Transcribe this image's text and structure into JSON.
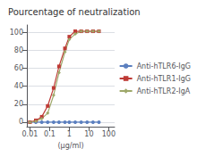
{
  "chart_data": {
    "type": "line",
    "title": "Pourcentage of neutralization",
    "x_label": "(μg/ml)",
    "log": "x",
    "xlim": [
      0.007,
      200
    ],
    "xticks": [
      0.01,
      0.1,
      1,
      10,
      100
    ],
    "ylim": [
      -5,
      108
    ],
    "yticks": [
      0,
      20,
      40,
      60,
      80,
      100
    ],
    "grid": "y",
    "legend": "right",
    "x": [
      0.01,
      0.02,
      0.04,
      0.08,
      0.16,
      0.3,
      0.6,
      1.0,
      2.0,
      4.0,
      8.0,
      16.0,
      32.0
    ],
    "series": [
      {
        "name": "Anti-hTLR6-IgG",
        "color": "#5B7FBF",
        "marker": "circle",
        "values": [
          0,
          0,
          0,
          0,
          0,
          0,
          0,
          0,
          0,
          0,
          0,
          0,
          0
        ]
      },
      {
        "name": "Anti-hTLR1-IgG",
        "color": "#BE3A35",
        "marker": "square",
        "values": [
          0,
          2,
          6,
          18,
          38,
          62,
          82,
          95,
          101,
          101,
          101,
          101,
          101
        ]
      },
      {
        "name": "Anti-hTLR2-IgA",
        "color": "#9EA86A",
        "marker": "diamond",
        "values": [
          0,
          1,
          4,
          10,
          30,
          55,
          78,
          92,
          98,
          101,
          101,
          101,
          101
        ]
      }
    ]
  }
}
